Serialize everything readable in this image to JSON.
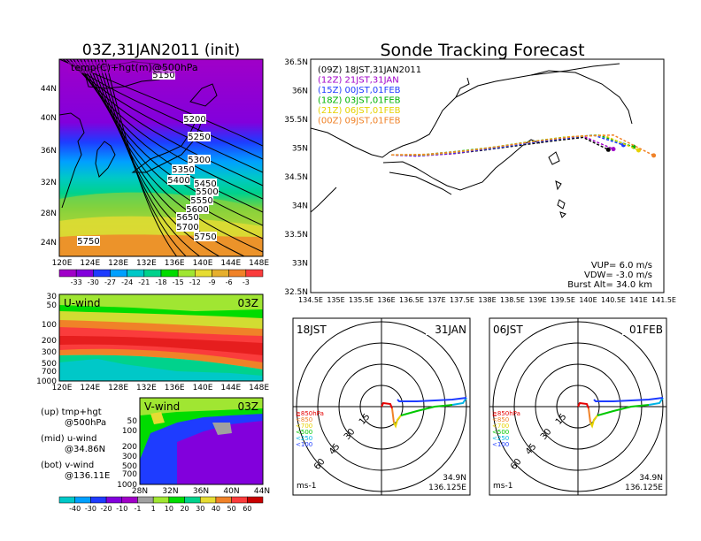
{
  "left": {
    "title": "03Z,31JAN2011 (init)",
    "map_label": "temp(C)+hgt(m)@500hPa",
    "contours": [
      "5150",
      "5200",
      "5250",
      "5300",
      "5350",
      "5400",
      "5450",
      "5500",
      "5550",
      "5600",
      "5650",
      "5700",
      "5750",
      "5750"
    ],
    "lat_labels": [
      "44N",
      "40N",
      "36N",
      "32N",
      "28N",
      "24N"
    ],
    "lon_labels": [
      "120E",
      "124E",
      "128E",
      "132E",
      "136E",
      "140E",
      "144E",
      "148E"
    ],
    "temp_colorbar": {
      "labels": [
        "-33",
        "-30",
        "-27",
        "-24",
        "-21",
        "-18",
        "-15",
        "-12",
        "-9",
        "-6",
        "-3"
      ],
      "colors": [
        "#a000c8",
        "#8200dc",
        "#1e3cff",
        "#00a0ff",
        "#00c8c8",
        "#00d28c",
        "#00dc00",
        "#a0e632",
        "#e6dc32",
        "#e6af2d",
        "#f08228",
        "#fa3c3c"
      ]
    },
    "uwind": {
      "label": "U-wind",
      "time": "03Z",
      "p_labels": [
        "30",
        "50",
        "100",
        "200",
        "300",
        "500",
        "700",
        "1000"
      ],
      "lon_labels": [
        "120E",
        "124E",
        "128E",
        "132E",
        "136E",
        "140E",
        "144E",
        "148E"
      ]
    },
    "vwind": {
      "label": "V-wind",
      "time": "03Z",
      "p_labels": [
        "50",
        "100",
        "200",
        "300",
        "500",
        "700",
        "1000"
      ],
      "lat_labels": [
        "28N",
        "32N",
        "36N",
        "40N",
        "44N"
      ]
    },
    "notes": [
      {
        "line1": "(up) tmp+hgt",
        "line2": "@500hPa"
      },
      {
        "line1": "(mid) u-wind",
        "line2": "@34.86N"
      },
      {
        "line1": "(bot) v-wind",
        "line2": "@136.11E"
      }
    ],
    "wind_colorbar": {
      "labels": [
        "-40",
        "-30",
        "-20",
        "-10",
        "-1",
        "1",
        "10",
        "20",
        "30",
        "40",
        "50",
        "60"
      ],
      "colors": [
        "#00c8c8",
        "#00a0ff",
        "#1e3cff",
        "#8200dc",
        "#a000c8",
        "#a0a0a0",
        "#a0e632",
        "#00dc00",
        "#00d28c",
        "#e6dc32",
        "#f08228",
        "#fa3c3c",
        "#c80000"
      ]
    }
  },
  "track": {
    "title": "Sonde Tracking Forecast",
    "legend": [
      {
        "text": "(09Z)  18JST,31JAN2011",
        "color": "#000000"
      },
      {
        "text": "(12Z)  21JST,31JAN",
        "color": "#a000c8"
      },
      {
        "text": "(15Z)  00JST,01FEB",
        "color": "#1e3cff"
      },
      {
        "text": "(18Z)  03JST,01FEB",
        "color": "#00b400"
      },
      {
        "text": "(21Z)  06JST,01FEB",
        "color": "#e6d200"
      },
      {
        "text": "(00Z)  09JST,01FEB",
        "color": "#f08228"
      }
    ],
    "lat_labels": [
      "36.5N",
      "36N",
      "35.5N",
      "35N",
      "34.5N",
      "34N",
      "33.5N",
      "33N",
      "32.5N"
    ],
    "lon_labels": [
      "134.5E",
      "135E",
      "135.5E",
      "136E",
      "136.5E",
      "137E",
      "137.5E",
      "138E",
      "138.5E",
      "139E",
      "139.5E",
      "140E",
      "140.5E",
      "141E",
      "141.5E"
    ],
    "params": [
      "VUP=  6.0  m/s",
      "VDW=  -3.0  m/s",
      "Burst Alt=  34.0  km"
    ]
  },
  "chart_data": [
    {
      "type": "heatmap",
      "title": "03Z,31JAN2011 (init)",
      "variable": "temp(C)+hgt(m)@500hPa",
      "xlim": [
        120,
        150
      ],
      "ylim": [
        22,
        48
      ],
      "color_levels": [
        -33,
        -30,
        -27,
        -24,
        -21,
        -18,
        -15,
        -12,
        -9,
        -6,
        -3
      ],
      "height_contours": [
        5150,
        5200,
        5250,
        5300,
        5350,
        5400,
        5450,
        5500,
        5550,
        5600,
        5650,
        5700,
        5750
      ]
    },
    {
      "type": "heatmap",
      "title": "U-wind",
      "section": "u-wind @34.86N",
      "xlim": [
        120,
        150
      ],
      "pressure_levels": [
        30,
        50,
        100,
        200,
        300,
        500,
        700,
        1000
      ]
    },
    {
      "type": "heatmap",
      "title": "V-wind",
      "section": "v-wind @136.11E",
      "xlim": [
        28,
        44
      ],
      "pressure_levels": [
        50,
        100,
        200,
        300,
        500,
        700,
        1000
      ],
      "color_levels": [
        -40,
        -30,
        -20,
        -10,
        -1,
        1,
        10,
        20,
        30,
        40,
        50,
        60
      ]
    },
    {
      "type": "line",
      "title": "Sonde Tracking Forecast",
      "xlim": [
        134.5,
        141.5
      ],
      "ylim": [
        32.5,
        36.5
      ],
      "series": [
        {
          "name": "(09Z) 18JST,31JAN2011",
          "color": "#000000",
          "x": [
            136.1,
            136.6,
            137.3,
            137.9,
            138.6,
            139.3,
            139.9,
            140.4
          ],
          "y": [
            34.86,
            34.85,
            34.88,
            34.94,
            35.02,
            35.1,
            35.16,
            34.95
          ]
        },
        {
          "name": "(12Z) 21JST,31JAN",
          "color": "#a000c8",
          "x": [
            136.1,
            136.6,
            137.3,
            137.9,
            138.6,
            139.3,
            139.9,
            140.5
          ],
          "y": [
            34.86,
            34.84,
            34.88,
            34.95,
            35.04,
            35.12,
            35.18,
            34.96
          ]
        },
        {
          "name": "(15Z) 00JST,01FEB",
          "color": "#1e3cff",
          "x": [
            136.1,
            136.7,
            137.4,
            138.1,
            138.8,
            139.5,
            140.1,
            140.7
          ],
          "y": [
            34.86,
            34.85,
            34.9,
            34.97,
            35.06,
            35.14,
            35.2,
            35.03
          ]
        },
        {
          "name": "(18Z) 03JST,01FEB",
          "color": "#00b400",
          "x": [
            136.1,
            136.7,
            137.4,
            138.1,
            138.8,
            139.5,
            140.2,
            140.9
          ],
          "y": [
            34.86,
            34.86,
            34.92,
            34.99,
            35.08,
            35.16,
            35.2,
            35.0
          ]
        },
        {
          "name": "(21Z) 06JST,01FEB",
          "color": "#e6d200",
          "x": [
            136.1,
            136.8,
            137.5,
            138.2,
            138.9,
            139.6,
            140.3,
            141.0
          ],
          "y": [
            34.86,
            34.86,
            34.92,
            35.0,
            35.09,
            35.17,
            35.2,
            34.94
          ]
        },
        {
          "name": "(00Z) 09JST,01FEB",
          "color": "#f08228",
          "x": [
            136.1,
            136.8,
            137.6,
            138.3,
            139.0,
            139.8,
            140.5,
            141.3
          ],
          "y": [
            34.86,
            34.87,
            34.93,
            35.01,
            35.1,
            35.18,
            35.2,
            34.85
          ]
        }
      ]
    }
  ],
  "polars": [
    {
      "time": "18JST",
      "date": "31JAN",
      "rings": [
        "15",
        "30",
        "45",
        "60"
      ],
      "pressure": [
        "≧850hPa",
        "<850",
        "<700",
        "<500",
        "<250",
        "<100"
      ],
      "units": "ms-1",
      "lat": "34.9N",
      "lon": "136.125E"
    },
    {
      "time": "06JST",
      "date": "01FEB",
      "rings": [
        "15",
        "30",
        "45",
        "60"
      ],
      "pressure": [
        "≧850hPa",
        "<850",
        "<700",
        "<500",
        "<250",
        "<100"
      ],
      "units": "ms-1",
      "lat": "34.9N",
      "lon": "136.125E"
    }
  ],
  "pressure_colors": [
    "#e60000",
    "#f08228",
    "#e6d200",
    "#00c800",
    "#00b4e6",
    "#1e3cff"
  ]
}
